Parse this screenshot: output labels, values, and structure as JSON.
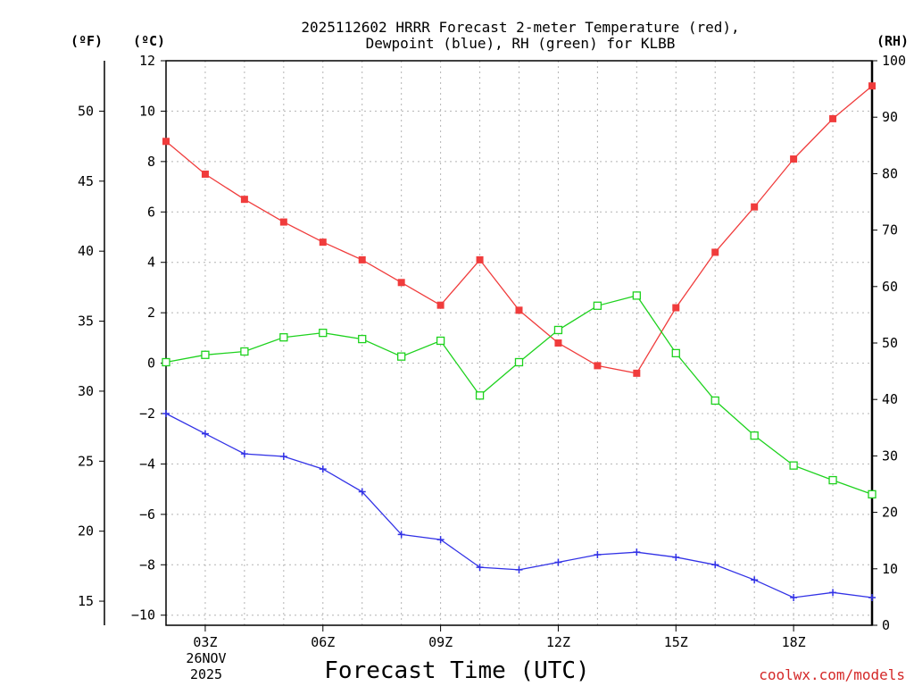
{
  "chart_data": {
    "type": "line",
    "title_line1": "2025112602 HRRR Forecast 2-meter Temperature (red),",
    "title_line2": "Dewpoint (blue), RH (green) for KLBB",
    "xlabel": "Forecast Time (UTC)",
    "credit": "coolwx.com/models",
    "date_label_line1": "26NOV",
    "date_label_line2": "2025",
    "units": {
      "fahrenheit": "(ºF)",
      "celsius": "(ºC)",
      "rh": "(RH)"
    },
    "x_hours": [
      2,
      3,
      4,
      5,
      6,
      7,
      8,
      9,
      10,
      11,
      12,
      13,
      14,
      15,
      16,
      17,
      18,
      19,
      20
    ],
    "x_ticks": [
      {
        "hour": 3,
        "label": "03Z"
      },
      {
        "hour": 6,
        "label": "06Z"
      },
      {
        "hour": 9,
        "label": "09Z"
      },
      {
        "hour": 12,
        "label": "12Z"
      },
      {
        "hour": 15,
        "label": "15Z"
      },
      {
        "hour": 18,
        "label": "18Z"
      }
    ],
    "xlim": [
      2,
      20
    ],
    "y_celsius": {
      "ylim": [
        -10.4,
        12
      ],
      "ticks": [
        -10,
        -8,
        -6,
        -4,
        -2,
        0,
        2,
        4,
        6,
        8,
        10,
        12
      ],
      "tick_labels": [
        "−10",
        "−8",
        "−6",
        "−4",
        "−2",
        "0",
        "2",
        "4",
        "6",
        "8",
        "10",
        "12"
      ]
    },
    "y_fahrenheit": {
      "ticks": [
        15,
        20,
        25,
        30,
        35,
        40,
        45,
        50
      ],
      "tick_labels": [
        "15",
        "20",
        "25",
        "30",
        "35",
        "40",
        "45",
        "50"
      ]
    },
    "y_rh": {
      "ylim": [
        0,
        100
      ],
      "ticks": [
        0,
        10,
        20,
        30,
        40,
        50,
        60,
        70,
        80,
        90,
        100
      ],
      "tick_labels": [
        "0",
        "10",
        "20",
        "30",
        "40",
        "50",
        "60",
        "70",
        "80",
        "90",
        "100"
      ]
    },
    "series": [
      {
        "name": "Temperature",
        "axis": "celsius",
        "color": "#f03c3c",
        "marker": "filled-square",
        "values": [
          8.8,
          7.5,
          6.5,
          5.6,
          4.8,
          4.1,
          3.2,
          2.3,
          4.1,
          2.1,
          0.8,
          -0.1,
          -0.4,
          2.2,
          4.4,
          6.2,
          8.1,
          9.7,
          11.0
        ]
      },
      {
        "name": "Dewpoint",
        "axis": "celsius",
        "color": "#3232e6",
        "marker": "plus",
        "values": [
          -2.0,
          -2.8,
          -3.6,
          -3.7,
          -4.2,
          -5.1,
          -6.8,
          -7.0,
          -8.1,
          -8.2,
          -7.9,
          -7.6,
          -7.5,
          -7.7,
          -8.0,
          -8.6,
          -9.3,
          -9.1,
          -9.3
        ]
      },
      {
        "name": "RH",
        "axis": "rh",
        "color": "#1ed21e",
        "marker": "open-square",
        "values": [
          46.6,
          47.9,
          48.5,
          51.0,
          51.8,
          50.7,
          47.6,
          50.4,
          40.7,
          46.6,
          52.3,
          56.6,
          58.4,
          48.2,
          39.8,
          33.6,
          28.3,
          25.7,
          23.2
        ]
      }
    ]
  }
}
